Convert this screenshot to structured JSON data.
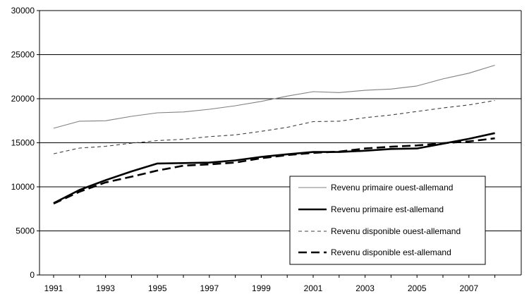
{
  "chart_data": {
    "type": "line",
    "x": [
      1991,
      1992,
      1993,
      1994,
      1995,
      1996,
      1997,
      1998,
      1999,
      2000,
      2001,
      2002,
      2003,
      2004,
      2005,
      2006,
      2007,
      2008
    ],
    "x_tick_labels": [
      "1991",
      "1993",
      "1995",
      "1997",
      "1999",
      "2001",
      "2003",
      "2005",
      "2007"
    ],
    "y_tick_labels": [
      "0",
      "5000",
      "10000",
      "15000",
      "20000",
      "25000",
      "30000"
    ],
    "ylim": [
      0,
      30000
    ],
    "grid": "horizontal",
    "legend_position": "bottom-right",
    "series": [
      {
        "name": "Revenu primaire ouest-allemand",
        "style": "thin-solid",
        "color": "#808080",
        "values": [
          16650,
          17450,
          17500,
          18000,
          18400,
          18500,
          18800,
          19200,
          19700,
          20300,
          20800,
          20700,
          20950,
          21100,
          21450,
          22250,
          22900,
          23800
        ]
      },
      {
        "name": "Revenu primaire est-allemand",
        "style": "thick-solid",
        "color": "#000000",
        "values": [
          8150,
          9650,
          10750,
          11750,
          12650,
          12700,
          12750,
          13000,
          13400,
          13700,
          13950,
          13950,
          14100,
          14300,
          14350,
          14900,
          15450,
          16100
        ]
      },
      {
        "name": "Revenu disponible ouest-allemand",
        "style": "thin-dashed",
        "color": "#404040",
        "values": [
          13750,
          14400,
          14600,
          14950,
          15250,
          15400,
          15700,
          15900,
          16300,
          16750,
          17400,
          17450,
          17850,
          18150,
          18550,
          18950,
          19300,
          19800
        ]
      },
      {
        "name": "Revenu disponible est-allemand",
        "style": "thick-dashed",
        "color": "#000000",
        "values": [
          8100,
          9450,
          10500,
          11150,
          11850,
          12400,
          12550,
          12750,
          13250,
          13600,
          13850,
          14000,
          14350,
          14550,
          14700,
          14950,
          15150,
          15500
        ]
      }
    ]
  }
}
